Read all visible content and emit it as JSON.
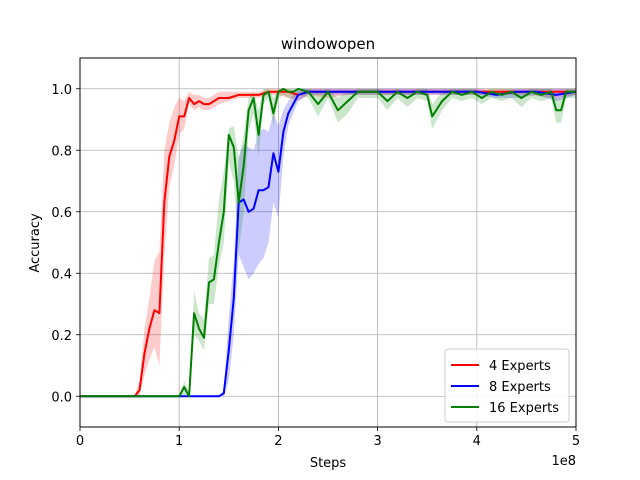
{
  "chart_data": {
    "type": "line",
    "title": "windowopen",
    "xlabel": "Steps",
    "ylabel": "Accuracy",
    "x_offset_label": "1e8",
    "xlim": [
      0,
      5
    ],
    "ylim": [
      -0.1,
      1.1
    ],
    "xticks": [
      0,
      1,
      2,
      3,
      4,
      5
    ],
    "yticks": [
      0.0,
      0.2,
      0.4,
      0.6,
      0.8,
      1.0
    ],
    "xtick_labels": [
      "0",
      "1",
      "2",
      "3",
      "4",
      "5"
    ],
    "ytick_labels": [
      "0.0",
      "0.2",
      "0.4",
      "0.6",
      "0.8",
      "1.0"
    ],
    "grid": true,
    "legend_position": "lower-right",
    "series": [
      {
        "name": "4 Experts",
        "color": "#ff0000",
        "x": [
          0,
          0.5,
          0.55,
          0.6,
          0.65,
          0.7,
          0.75,
          0.8,
          0.85,
          0.9,
          0.95,
          1.0,
          1.05,
          1.1,
          1.15,
          1.2,
          1.25,
          1.3,
          1.35,
          1.4,
          1.5,
          1.6,
          1.7,
          1.8,
          1.9,
          2.0,
          2.1,
          2.2,
          2.3,
          2.5,
          2.7,
          3.0,
          3.3,
          3.6,
          3.9,
          4.2,
          4.5,
          4.8,
          5.0
        ],
        "y": [
          0,
          0,
          0,
          0.02,
          0.14,
          0.22,
          0.28,
          0.27,
          0.63,
          0.78,
          0.83,
          0.91,
          0.91,
          0.97,
          0.95,
          0.96,
          0.95,
          0.95,
          0.96,
          0.97,
          0.97,
          0.98,
          0.98,
          0.98,
          0.99,
          0.99,
          0.99,
          0.98,
          0.99,
          0.99,
          0.99,
          0.99,
          0.99,
          0.99,
          0.99,
          0.99,
          0.99,
          0.99,
          0.99
        ],
        "lower": [
          0,
          0,
          0,
          0.0,
          0.07,
          0.12,
          0.16,
          0.1,
          0.45,
          0.68,
          0.75,
          0.85,
          0.87,
          0.95,
          0.93,
          0.94,
          0.93,
          0.93,
          0.94,
          0.95,
          0.96,
          0.97,
          0.97,
          0.97,
          0.98,
          0.98,
          0.97,
          0.96,
          0.98,
          0.97,
          0.98,
          0.98,
          0.98,
          0.98,
          0.98,
          0.98,
          0.98,
          0.97,
          0.98
        ],
        "upper": [
          0,
          0,
          0,
          0.05,
          0.22,
          0.32,
          0.44,
          0.47,
          0.8,
          0.89,
          0.94,
          0.97,
          0.96,
          0.99,
          0.98,
          0.98,
          0.97,
          0.97,
          0.98,
          0.99,
          0.99,
          0.99,
          0.99,
          0.99,
          1.0,
          1.0,
          1.0,
          0.99,
          1.0,
          1.0,
          1.0,
          1.0,
          1.0,
          1.0,
          1.0,
          1.0,
          1.0,
          1.0,
          1.0
        ]
      },
      {
        "name": "8 Experts",
        "color": "#0000ff",
        "x": [
          0,
          1.0,
          1.1,
          1.2,
          1.3,
          1.4,
          1.45,
          1.5,
          1.55,
          1.6,
          1.65,
          1.7,
          1.75,
          1.8,
          1.85,
          1.9,
          1.95,
          2.0,
          2.05,
          2.1,
          2.2,
          2.3,
          2.4,
          2.6,
          2.8,
          3.0,
          3.2,
          3.5,
          3.8,
          4.0,
          4.2,
          4.4,
          4.6,
          4.8,
          5.0
        ],
        "y": [
          0,
          0,
          0,
          0,
          0,
          0,
          0.01,
          0.15,
          0.32,
          0.63,
          0.64,
          0.6,
          0.61,
          0.67,
          0.67,
          0.68,
          0.79,
          0.73,
          0.86,
          0.92,
          0.98,
          0.99,
          0.99,
          0.99,
          0.99,
          0.99,
          0.99,
          0.99,
          0.99,
          0.99,
          0.98,
          0.99,
          0.99,
          0.98,
          0.99
        ],
        "lower": [
          0,
          0,
          0,
          0,
          0,
          0,
          0,
          0.05,
          0.2,
          0.46,
          0.42,
          0.38,
          0.4,
          0.43,
          0.45,
          0.5,
          0.63,
          0.58,
          0.78,
          0.88,
          0.96,
          0.98,
          0.98,
          0.98,
          0.98,
          0.98,
          0.98,
          0.98,
          0.98,
          0.98,
          0.97,
          0.97,
          0.98,
          0.96,
          0.98
        ],
        "upper": [
          0,
          0,
          0,
          0,
          0,
          0,
          0.02,
          0.26,
          0.44,
          0.78,
          0.82,
          0.81,
          0.8,
          0.86,
          0.87,
          0.86,
          0.92,
          0.88,
          0.93,
          0.96,
          1.0,
          1.0,
          1.0,
          1.0,
          1.0,
          1.0,
          1.0,
          1.0,
          1.0,
          1.0,
          0.99,
          1.0,
          1.0,
          1.0,
          1.0
        ]
      },
      {
        "name": "16 Experts",
        "color": "#008000",
        "x": [
          0,
          1.0,
          1.05,
          1.1,
          1.15,
          1.2,
          1.25,
          1.3,
          1.35,
          1.4,
          1.45,
          1.5,
          1.55,
          1.6,
          1.65,
          1.7,
          1.75,
          1.8,
          1.85,
          1.9,
          1.95,
          2.0,
          2.05,
          2.1,
          2.15,
          2.2,
          2.3,
          2.4,
          2.5,
          2.6,
          2.7,
          2.8,
          2.9,
          3.0,
          3.1,
          3.2,
          3.3,
          3.4,
          3.5,
          3.55,
          3.65,
          3.75,
          3.85,
          3.95,
          4.05,
          4.15,
          4.25,
          4.35,
          4.45,
          4.55,
          4.65,
          4.75,
          4.8,
          4.85,
          4.9,
          5.0
        ],
        "y": [
          0,
          0,
          0.03,
          0.0,
          0.27,
          0.22,
          0.19,
          0.37,
          0.38,
          0.5,
          0.6,
          0.85,
          0.81,
          0.63,
          0.75,
          0.93,
          0.97,
          0.85,
          0.98,
          0.99,
          0.92,
          0.99,
          1.0,
          0.99,
          0.99,
          1.0,
          0.99,
          0.95,
          0.99,
          0.93,
          0.96,
          0.99,
          0.99,
          0.99,
          0.96,
          0.99,
          0.97,
          0.99,
          0.98,
          0.91,
          0.96,
          0.99,
          0.98,
          0.99,
          0.97,
          0.99,
          0.98,
          0.99,
          0.97,
          0.99,
          0.98,
          0.99,
          0.93,
          0.93,
          0.99,
          0.99
        ],
        "lower": [
          0,
          0,
          0.0,
          0.0,
          0.2,
          0.18,
          0.15,
          0.3,
          0.3,
          0.42,
          0.5,
          0.76,
          0.7,
          0.47,
          0.6,
          0.86,
          0.92,
          0.78,
          0.95,
          0.97,
          0.88,
          0.97,
          0.98,
          0.97,
          0.97,
          0.98,
          0.97,
          0.91,
          0.97,
          0.89,
          0.92,
          0.97,
          0.97,
          0.97,
          0.93,
          0.97,
          0.94,
          0.97,
          0.96,
          0.87,
          0.93,
          0.97,
          0.96,
          0.97,
          0.95,
          0.97,
          0.96,
          0.97,
          0.94,
          0.97,
          0.96,
          0.97,
          0.89,
          0.89,
          0.97,
          0.97
        ],
        "upper": [
          0,
          0,
          0.05,
          0.01,
          0.34,
          0.27,
          0.25,
          0.45,
          0.46,
          0.64,
          0.73,
          0.87,
          0.88,
          0.77,
          0.85,
          0.97,
          0.99,
          0.93,
          1.0,
          1.0,
          0.97,
          1.0,
          1.0,
          1.0,
          1.0,
          1.0,
          1.0,
          0.99,
          1.0,
          0.97,
          0.99,
          1.0,
          1.0,
          1.0,
          0.99,
          1.0,
          0.99,
          1.0,
          1.0,
          0.95,
          0.99,
          1.0,
          1.0,
          1.0,
          0.99,
          1.0,
          1.0,
          1.0,
          0.99,
          1.0,
          1.0,
          1.0,
          0.97,
          0.97,
          1.0,
          1.0
        ]
      }
    ]
  }
}
